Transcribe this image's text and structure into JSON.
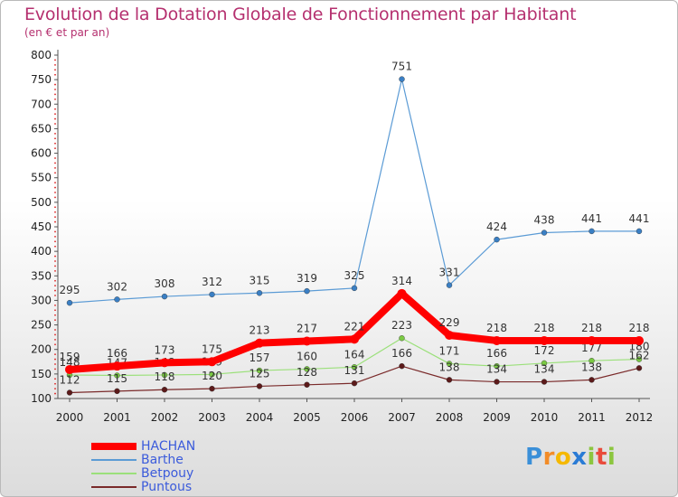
{
  "title": "Evolution de la Dotation Globale de Fonctionnement par Habitant",
  "subtitle": "(en € et par an)",
  "logo": {
    "letters": [
      {
        "ch": "P",
        "color": "#3a8fd8"
      },
      {
        "ch": "r",
        "color": "#f28c28"
      },
      {
        "ch": "o",
        "color": "#f5b800"
      },
      {
        "ch": "x",
        "color": "#2a7bd5"
      },
      {
        "ch": "i",
        "color": "#8cc63f"
      },
      {
        "ch": "t",
        "color": "#e94b3c"
      },
      {
        "ch": "i",
        "color": "#8cc63f"
      }
    ]
  },
  "chart_data": {
    "type": "line",
    "x": [
      "2000",
      "2001",
      "2002",
      "2003",
      "2004",
      "2005",
      "2006",
      "2007",
      "2008",
      "2009",
      "2010",
      "2011",
      "2012"
    ],
    "ylim": [
      100,
      800
    ],
    "yticks": [
      100,
      150,
      200,
      250,
      300,
      350,
      400,
      450,
      500,
      550,
      600,
      650,
      700,
      750,
      800
    ],
    "grid": false,
    "legend_position": "bottom-left",
    "series": [
      {
        "name": "Barthe",
        "color": "#5b9bd5",
        "marker": "#3a7fc4",
        "width": 1.2,
        "values": [
          295,
          302,
          308,
          312,
          315,
          319,
          325,
          751,
          331,
          424,
          438,
          441,
          441
        ],
        "labels": [
          "295",
          "302",
          "308",
          "312",
          "315",
          "319",
          "325",
          "751",
          "331",
          "424",
          "438",
          "441",
          "441"
        ]
      },
      {
        "name": "Betpouy",
        "color": "#9be07a",
        "marker": "#7ac943",
        "width": 1.2,
        "values": [
          148,
          147,
          148,
          149,
          157,
          160,
          164,
          223,
          171,
          166,
          172,
          177,
          180
        ],
        "labels": [
          "148",
          "147",
          "148",
          "149",
          "157",
          "160",
          "164",
          "223",
          "171",
          "166",
          "172",
          "177",
          "180"
        ]
      },
      {
        "name": "Puntous",
        "color": "#7a2a2a",
        "marker": "#5c1a1a",
        "width": 1.2,
        "values": [
          112,
          115,
          118,
          120,
          125,
          128,
          131,
          166,
          138,
          134,
          134,
          138,
          162
        ],
        "labels": [
          "112",
          "115",
          "118",
          "120",
          "125",
          "128",
          "131",
          "166",
          "138",
          "134",
          "134",
          "138",
          "162"
        ]
      },
      {
        "name": "HACHAN",
        "color": "#ff0000",
        "marker": "#ff0000",
        "width": 8,
        "values": [
          159,
          166,
          173,
          175,
          213,
          217,
          221,
          314,
          229,
          218,
          218,
          218,
          218
        ],
        "labels": [
          "159",
          "166",
          "173",
          "175",
          "213",
          "217",
          "221",
          "314",
          "229",
          "218",
          "218",
          "218",
          "218"
        ]
      }
    ],
    "legend_order": [
      "HACHAN",
      "Barthe",
      "Betpouy",
      "Puntous"
    ]
  }
}
